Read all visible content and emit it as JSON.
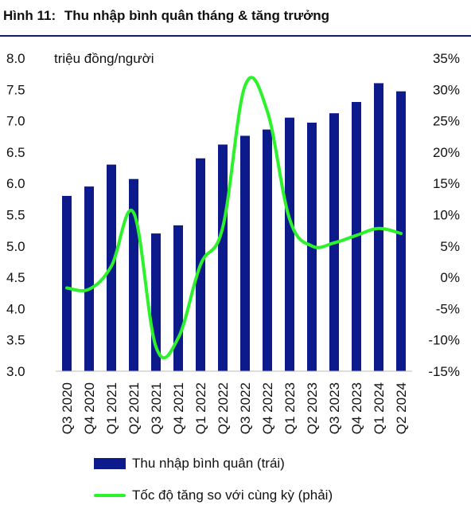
{
  "title": {
    "number": "Hình 11:",
    "text": "Thu nhập bình quân tháng & tăng trưởng"
  },
  "legend": {
    "bar_label": "Thu nhập bình quân (trái)",
    "line_label": "Tốc độ tăng so với cùng kỳ (phải)"
  },
  "chart_data": {
    "type": "bar",
    "categories": [
      "Q3 2020",
      "Q4 2020",
      "Q1 2021",
      "Q2 2021",
      "Q3 2021",
      "Q4 2021",
      "Q1 2022",
      "Q2 2022",
      "Q3 2022",
      "Q4 2022",
      "Q1 2023",
      "Q2 2023",
      "Q3 2023",
      "Q4 2023",
      "Q1 2024",
      "Q2 2024"
    ],
    "left_axis": {
      "unit_label": "triệu đồng/người",
      "ylim": [
        3.0,
        8.0
      ],
      "ticks": [
        "3.0",
        "3.5",
        "4.0",
        "4.5",
        "5.0",
        "5.5",
        "6.0",
        "6.5",
        "7.0",
        "7.5",
        "8.0"
      ]
    },
    "right_axis": {
      "ylim": [
        -15,
        35
      ],
      "ticks": [
        "-15%",
        "-10%",
        "-5%",
        "0%",
        "5%",
        "10%",
        "15%",
        "20%",
        "25%",
        "30%",
        "35%"
      ]
    },
    "series": [
      {
        "name": "Thu nhập bình quân (trái)",
        "type": "bar",
        "axis": "left",
        "color": "#0d1a8c",
        "values": [
          5.8,
          5.95,
          6.3,
          6.07,
          5.2,
          5.33,
          6.4,
          6.62,
          6.76,
          6.86,
          7.05,
          6.97,
          7.12,
          7.3,
          7.6,
          7.47
        ]
      },
      {
        "name": "Tốc độ tăng so với cùng kỳ (phải)",
        "type": "line",
        "axis": "right",
        "color": "#2bf22b",
        "values": [
          -1.7,
          -1.9,
          1.8,
          10.3,
          -11.1,
          -9.7,
          2.0,
          8.0,
          30.6,
          26.5,
          9.3,
          5.0,
          5.5,
          6.7,
          7.8,
          7.0
        ]
      }
    ],
    "grid": false
  }
}
